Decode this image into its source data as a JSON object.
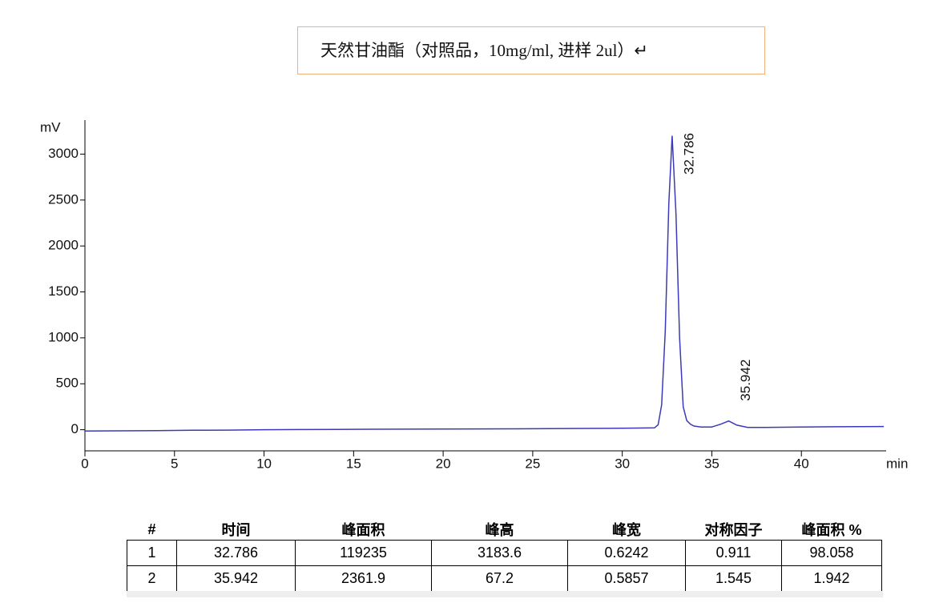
{
  "header": {
    "title": "天然甘油酯（对照品，10mg/ml, 进样  2ul）↵"
  },
  "chart_data": {
    "type": "line",
    "ylabel": "mV",
    "xlabel": "min",
    "x": [
      0,
      2,
      4,
      6,
      8,
      10,
      12,
      14,
      16,
      18,
      20,
      22,
      24,
      26,
      28,
      30,
      31,
      31.8,
      32.0,
      32.2,
      32.4,
      32.6,
      32.786,
      33.0,
      33.2,
      33.4,
      33.6,
      33.8,
      34.0,
      34.4,
      35.0,
      35.5,
      35.942,
      36.4,
      37,
      38,
      40,
      42,
      44.6
    ],
    "series": [
      {
        "color": "#3a3ab8",
        "values": [
          -15,
          -12,
          -10,
          -6,
          -4,
          0,
          2,
          3,
          5,
          6,
          8,
          9,
          10,
          12,
          14,
          16,
          18,
          20,
          53,
          270,
          1070,
          2470,
          3200,
          2350,
          1000,
          250,
          100,
          60,
          40,
          30,
          30,
          60,
          95,
          50,
          25,
          25,
          30,
          32,
          35
        ]
      }
    ],
    "annotations": [
      {
        "x": 32.786,
        "label": "32.786"
      },
      {
        "x": 35.942,
        "label": "35.942"
      }
    ],
    "xlim": [
      0,
      45
    ],
    "xticks": [
      0,
      5,
      10,
      15,
      20,
      25,
      30,
      35,
      40
    ],
    "ylim": [
      -230,
      3370
    ],
    "yticks": [
      0,
      500,
      1000,
      1500,
      2000,
      2500,
      3000
    ]
  },
  "table": {
    "header": [
      "#",
      "时间",
      "峰面积",
      "峰高",
      "峰宽",
      "对称因子",
      "峰面积 %"
    ],
    "rows": [
      [
        "1",
        "32.786",
        "119235",
        "3183.6",
        "0.6242",
        "0.911",
        "98.058"
      ],
      [
        "2",
        "35.942",
        "2361.9",
        "67.2",
        "0.5857",
        "1.545",
        "1.942"
      ]
    ]
  }
}
